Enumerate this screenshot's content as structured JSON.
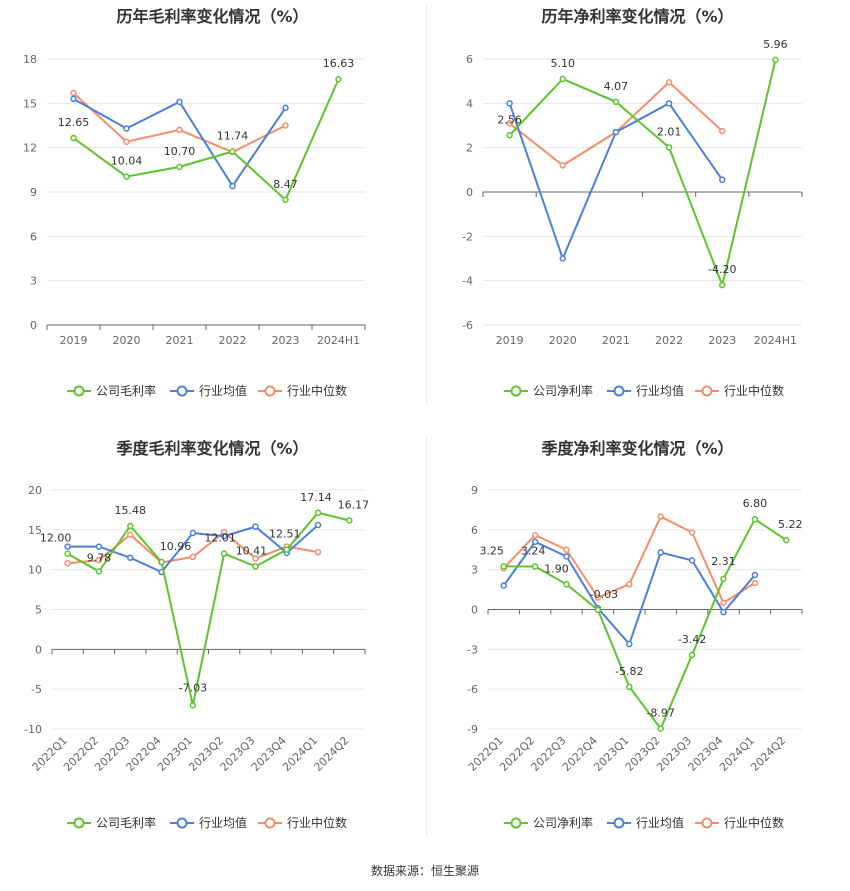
{
  "source_text": "数据来源：恒生聚源",
  "colors": {
    "company": "#5cc42d",
    "avg": "#4a7fdb",
    "median": "#f28e6a",
    "grid": "#e6e6e6",
    "axis": "#666666"
  },
  "chart_data": [
    {
      "type": "line",
      "title": "历年毛利率变化情况（%）",
      "categories": [
        "2019",
        "2020",
        "2021",
        "2022",
        "2023",
        "2024H1"
      ],
      "ylim": [
        0,
        18
      ],
      "yticks": [
        0,
        3,
        6,
        9,
        12,
        15,
        18
      ],
      "grid": true,
      "legend_position": "bottom",
      "series": [
        {
          "name": "公司毛利率",
          "values": [
            12.65,
            10.04,
            10.7,
            11.74,
            8.47,
            16.63
          ],
          "labels": [
            "12.65",
            "10.04",
            "10.70",
            "11.74",
            "8.47",
            "16.63"
          ]
        },
        {
          "name": "行业均值",
          "values": [
            15.3,
            13.3,
            15.1,
            9.4,
            14.7,
            null
          ]
        },
        {
          "name": "行业中位数",
          "values": [
            15.7,
            12.4,
            13.2,
            11.7,
            13.5,
            null
          ]
        }
      ]
    },
    {
      "type": "line",
      "title": "历年净利率变化情况（%）",
      "categories": [
        "2019",
        "2020",
        "2021",
        "2022",
        "2023",
        "2024H1"
      ],
      "ylim": [
        -6,
        6
      ],
      "yticks": [
        -6,
        -4,
        -2,
        0,
        2,
        4,
        6
      ],
      "grid": true,
      "legend_position": "bottom",
      "series": [
        {
          "name": "公司净利率",
          "values": [
            2.56,
            5.1,
            4.07,
            2.01,
            -4.2,
            5.96
          ],
          "labels": [
            "2.56",
            "5.10",
            "4.07",
            "2.01",
            "-4.20",
            "5.96"
          ]
        },
        {
          "name": "行业均值",
          "values": [
            4.0,
            -3.0,
            2.7,
            4.0,
            0.55,
            null
          ]
        },
        {
          "name": "行业中位数",
          "values": [
            3.1,
            1.2,
            2.7,
            4.95,
            2.75,
            null
          ]
        }
      ]
    },
    {
      "type": "line",
      "title": "季度毛利率变化情况（%）",
      "categories": [
        "2022Q1",
        "2022Q2",
        "2022Q3",
        "2022Q4",
        "2023Q1",
        "2023Q2",
        "2023Q3",
        "2023Q4",
        "2024Q1",
        "2024Q2"
      ],
      "ylim": [
        -10,
        20
      ],
      "yticks": [
        -10,
        -5,
        0,
        5,
        10,
        15,
        20
      ],
      "grid": true,
      "legend_position": "bottom",
      "series": [
        {
          "name": "公司毛利率",
          "values": [
            12.0,
            9.78,
            15.48,
            10.96,
            -7.03,
            12.01,
            10.41,
            12.51,
            17.14,
            16.17
          ],
          "labels": [
            "12.00",
            "9.78",
            "15.48",
            "10.96",
            "-7.03",
            "12.01",
            "10.41",
            "12.51",
            "17.14",
            "16.17"
          ]
        },
        {
          "name": "行业均值",
          "values": [
            12.9,
            12.9,
            11.5,
            9.7,
            14.6,
            14.2,
            15.4,
            12.1,
            15.6,
            null
          ]
        },
        {
          "name": "行业中位数",
          "values": [
            10.8,
            11.2,
            14.4,
            10.9,
            11.6,
            14.7,
            11.4,
            12.9,
            12.2,
            null
          ]
        }
      ]
    },
    {
      "type": "line",
      "title": "季度净利率变化情况（%）",
      "categories": [
        "2022Q1",
        "2022Q2",
        "2022Q3",
        "2022Q4",
        "2023Q1",
        "2023Q2",
        "2023Q3",
        "2023Q4",
        "2024Q1",
        "2024Q2"
      ],
      "ylim": [
        -9,
        9
      ],
      "yticks": [
        -9,
        -6,
        -3,
        0,
        3,
        6,
        9
      ],
      "grid": true,
      "legend_position": "bottom",
      "series": [
        {
          "name": "公司净利率",
          "values": [
            3.25,
            3.24,
            1.9,
            -0.03,
            -5.82,
            -8.97,
            -3.42,
            2.31,
            6.8,
            5.22
          ],
          "labels": [
            "3.25",
            "3.24",
            "1.90",
            "-0.03",
            "-5.82",
            "-8.97",
            "-3.42",
            "2.31",
            "6.80",
            "5.22"
          ]
        },
        {
          "name": "行业均值",
          "values": [
            1.8,
            5.1,
            4.0,
            0.1,
            -2.6,
            4.3,
            3.7,
            -0.2,
            2.6,
            null
          ]
        },
        {
          "name": "行业中位数",
          "values": [
            3.1,
            5.6,
            4.5,
            0.9,
            1.9,
            7.0,
            5.8,
            0.5,
            2.0,
            null
          ]
        }
      ]
    }
  ]
}
